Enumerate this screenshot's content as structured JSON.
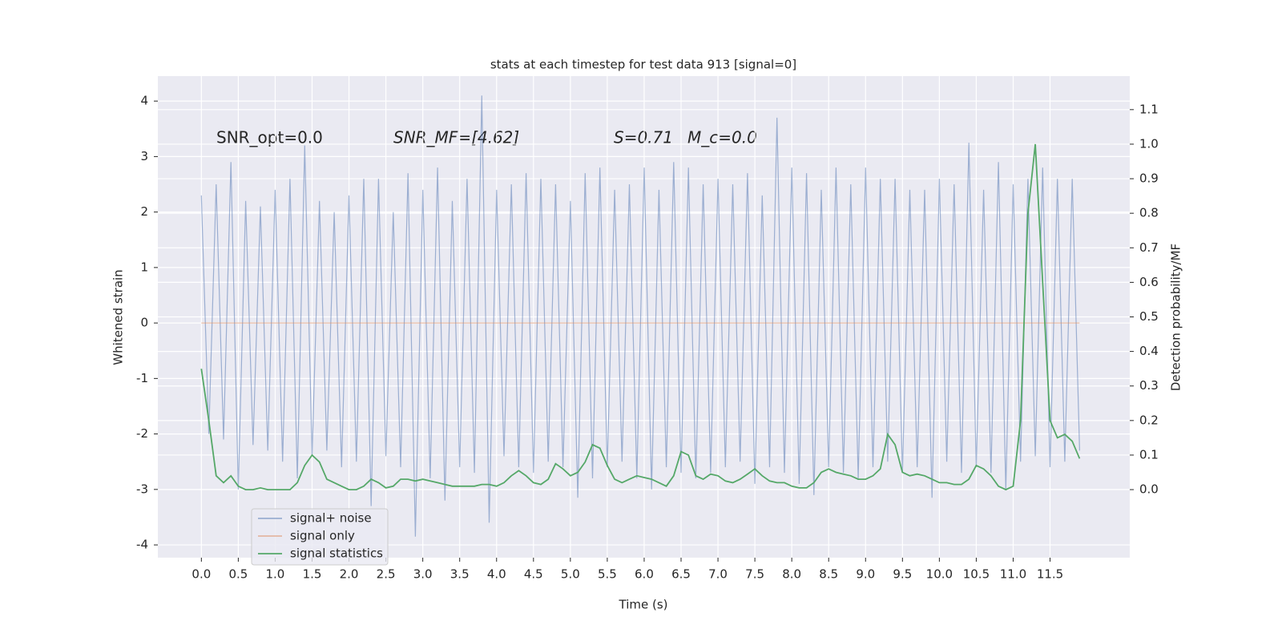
{
  "chart_data": {
    "type": "line",
    "title": "stats at each timestep for test data 913 [signal=0]",
    "xlabel": "Time (s)",
    "ylabel": "Whitened strain",
    "y2label": "Detection probability/MF",
    "annotations": [
      "SNR_opt=0.0",
      "SNR_MF=[4.62]",
      "S=0.71",
      "M_c=0.0"
    ],
    "grid": true,
    "legend": "lower left",
    "xlim": [
      -0.59,
      12.58
    ],
    "ylim": [
      -4.23,
      4.45
    ],
    "y2lim": [
      -0.197,
      1.197
    ],
    "xticks": [
      {
        "value": 0,
        "label": "0.0"
      },
      {
        "value": 0.5,
        "label": "0.5"
      },
      {
        "value": 1,
        "label": "1.0"
      },
      {
        "value": 1.5,
        "label": "1.5"
      },
      {
        "value": 2,
        "label": "2.0"
      },
      {
        "value": 2.5,
        "label": "2.5"
      },
      {
        "value": 3,
        "label": "3.0"
      },
      {
        "value": 3.5,
        "label": "3.5"
      },
      {
        "value": 4,
        "label": "4.0"
      },
      {
        "value": 4.5,
        "label": "4.5"
      },
      {
        "value": 5,
        "label": "5.0"
      },
      {
        "value": 5.5,
        "label": "5.5"
      },
      {
        "value": 6,
        "label": "6.0"
      },
      {
        "value": 6.5,
        "label": "6.5"
      },
      {
        "value": 7,
        "label": "7.0"
      },
      {
        "value": 7.5,
        "label": "7.5"
      },
      {
        "value": 8,
        "label": "8.0"
      },
      {
        "value": 8.5,
        "label": "8.5"
      },
      {
        "value": 9,
        "label": "9.0"
      },
      {
        "value": 9.5,
        "label": "9.5"
      },
      {
        "value": 10,
        "label": "10.0"
      },
      {
        "value": 10.5,
        "label": "10.5"
      },
      {
        "value": 11,
        "label": "11.0"
      },
      {
        "value": 11.5,
        "label": "11.5"
      }
    ],
    "yticks": [
      -4,
      -3,
      -2,
      -1,
      0,
      1,
      2,
      3,
      4
    ],
    "y2ticks": [
      {
        "value": 0,
        "label": "0.0"
      },
      {
        "value": 0.1,
        "label": "0.1"
      },
      {
        "value": 0.2,
        "label": "0.2"
      },
      {
        "value": 0.3,
        "label": "0.3"
      },
      {
        "value": 0.4,
        "label": "0.4"
      },
      {
        "value": 0.5,
        "label": "0.5"
      },
      {
        "value": 0.6,
        "label": "0.6"
      },
      {
        "value": 0.7,
        "label": "0.7"
      },
      {
        "value": 0.8,
        "label": "0.8"
      },
      {
        "value": 0.9,
        "label": "0.9"
      },
      {
        "value": 1,
        "label": "1.0"
      },
      {
        "value": 1.1,
        "label": "1.1"
      }
    ],
    "x": [
      0,
      0.1,
      0.2,
      0.3,
      0.4,
      0.5,
      0.6,
      0.7,
      0.8,
      0.9,
      1,
      1.1,
      1.2,
      1.3,
      1.4,
      1.5,
      1.6,
      1.7,
      1.8,
      1.9,
      2,
      2.1,
      2.2,
      2.3,
      2.4,
      2.5,
      2.6,
      2.7,
      2.8,
      2.9,
      3,
      3.1,
      3.2,
      3.3,
      3.4,
      3.5,
      3.6,
      3.7,
      3.8,
      3.9,
      4,
      4.1,
      4.2,
      4.3,
      4.4,
      4.5,
      4.6,
      4.7,
      4.8,
      4.9,
      5,
      5.1,
      5.2,
      5.3,
      5.4,
      5.5,
      5.6,
      5.7,
      5.8,
      5.9,
      6,
      6.1,
      6.2,
      6.3,
      6.4,
      6.5,
      6.6,
      6.7,
      6.8,
      6.9,
      7,
      7.1,
      7.2,
      7.3,
      7.4,
      7.5,
      7.6,
      7.7,
      7.8,
      7.9,
      8,
      8.1,
      8.2,
      8.3,
      8.4,
      8.5,
      8.6,
      8.7,
      8.8,
      8.9,
      9,
      9.1,
      9.2,
      9.3,
      9.4,
      9.5,
      9.6,
      9.7,
      9.8,
      9.9,
      10,
      10.1,
      10.2,
      10.3,
      10.4,
      10.5,
      10.6,
      10.7,
      10.8,
      10.9,
      11,
      11.1,
      11.2,
      11.3,
      11.4,
      11.5,
      11.6,
      11.7,
      11.8,
      11.9
    ],
    "series": [
      {
        "name": "signal+ noise",
        "color": "#4c72b0",
        "opacity": 0.5,
        "values": [
          2.3,
          -2.0,
          2.5,
          -2.1,
          2.9,
          -3.0,
          2.2,
          -2.2,
          2.1,
          -2.3,
          2.4,
          -2.5,
          2.6,
          -2.8,
          3.2,
          -2.4,
          2.2,
          -2.3,
          2.0,
          -2.6,
          2.3,
          -2.5,
          2.6,
          -3.3,
          2.6,
          -2.4,
          2.0,
          -2.6,
          2.7,
          -3.85,
          2.4,
          -2.8,
          2.8,
          -3.2,
          2.2,
          -2.6,
          2.6,
          -2.7,
          4.1,
          -3.6,
          2.4,
          -2.4,
          2.5,
          -2.6,
          2.7,
          -2.7,
          2.6,
          -2.5,
          2.5,
          -2.6,
          2.2,
          -3.15,
          2.7,
          -2.8,
          2.8,
          -2.6,
          2.4,
          -2.5,
          2.5,
          -2.8,
          2.8,
          -3.0,
          2.4,
          -2.6,
          2.9,
          -2.7,
          2.8,
          -2.8,
          2.5,
          -2.7,
          2.6,
          -2.6,
          2.5,
          -2.5,
          2.7,
          -2.9,
          2.3,
          -2.6,
          3.7,
          -2.7,
          2.8,
          -2.9,
          2.7,
          -3.1,
          2.4,
          -2.6,
          2.8,
          -2.7,
          2.5,
          -2.8,
          2.8,
          -2.6,
          2.6,
          -2.5,
          2.6,
          -2.7,
          2.4,
          -2.6,
          2.4,
          -3.15,
          2.6,
          -2.5,
          2.5,
          -2.7,
          3.25,
          -2.6,
          2.4,
          -2.7,
          2.9,
          -3.0,
          2.5,
          -2.5,
          2.6,
          -2.4,
          2.8,
          -2.6,
          2.6,
          -2.5,
          2.6,
          -2.3
        ]
      },
      {
        "name": "signal only",
        "color": "#dd8452",
        "opacity": 0.5,
        "values": [
          0,
          0,
          0,
          0,
          0,
          0,
          0,
          0,
          0,
          0,
          0,
          0,
          0,
          0,
          0,
          0,
          0,
          0,
          0,
          0,
          0,
          0,
          0,
          0,
          0,
          0,
          0,
          0,
          0,
          0,
          0,
          0,
          0,
          0,
          0,
          0,
          0,
          0,
          0,
          0,
          0,
          0,
          0,
          0,
          0,
          0,
          0,
          0,
          0,
          0,
          0,
          0,
          0,
          0,
          0,
          0,
          0,
          0,
          0,
          0,
          0,
          0,
          0,
          0,
          0,
          0,
          0,
          0,
          0,
          0,
          0,
          0,
          0,
          0,
          0,
          0,
          0,
          0,
          0,
          0,
          0,
          0,
          0,
          0,
          0,
          0,
          0,
          0,
          0,
          0,
          0,
          0,
          0,
          0,
          0,
          0,
          0,
          0,
          0,
          0,
          0,
          0,
          0,
          0,
          0,
          0,
          0,
          0,
          0,
          0,
          0,
          0,
          0,
          0,
          0,
          0,
          0,
          0,
          0,
          0
        ]
      },
      {
        "name": "signal statistics",
        "color": "#55a868",
        "opacity": 1,
        "axis": "y2",
        "values": [
          0.35,
          0.2,
          0.04,
          0.02,
          0.04,
          0.01,
          0,
          0,
          0.005,
          0,
          0,
          0,
          0,
          0.02,
          0.07,
          0.1,
          0.08,
          0.03,
          0.02,
          0.01,
          0,
          0,
          0.01,
          0.03,
          0.02,
          0.005,
          0.01,
          0.03,
          0.03,
          0.025,
          0.03,
          0.025,
          0.02,
          0.015,
          0.01,
          0.01,
          0.01,
          0.01,
          0.015,
          0.015,
          0.01,
          0.02,
          0.04,
          0.055,
          0.04,
          0.02,
          0.015,
          0.03,
          0.075,
          0.06,
          0.04,
          0.05,
          0.08,
          0.13,
          0.12,
          0.07,
          0.03,
          0.02,
          0.03,
          0.04,
          0.035,
          0.03,
          0.02,
          0.01,
          0.04,
          0.11,
          0.1,
          0.04,
          0.03,
          0.045,
          0.04,
          0.025,
          0.02,
          0.03,
          0.045,
          0.06,
          0.04,
          0.025,
          0.02,
          0.02,
          0.01,
          0.005,
          0.005,
          0.02,
          0.05,
          0.06,
          0.05,
          0.045,
          0.04,
          0.03,
          0.03,
          0.04,
          0.06,
          0.16,
          0.13,
          0.05,
          0.04,
          0.045,
          0.04,
          0.03,
          0.02,
          0.02,
          0.015,
          0.015,
          0.03,
          0.07,
          0.06,
          0.04,
          0.01,
          0,
          0.01,
          0.2,
          0.8,
          1.0,
          0.6,
          0.2,
          0.15,
          0.16,
          0.14,
          0.09
        ]
      }
    ]
  }
}
